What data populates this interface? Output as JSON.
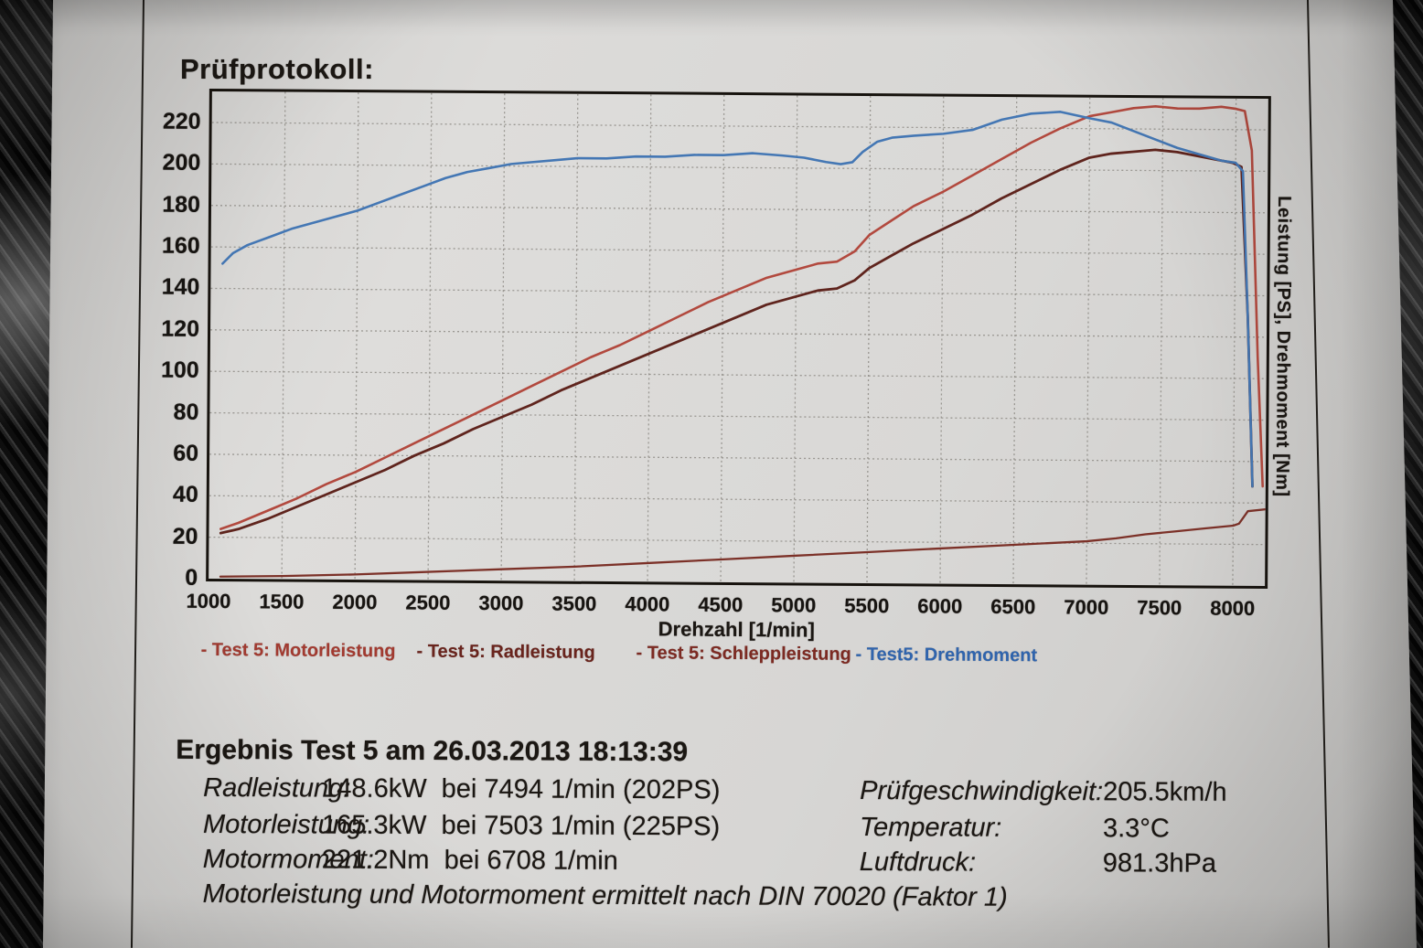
{
  "page": {
    "title": "Prüfprotokoll:"
  },
  "chart": {
    "x_axis": {
      "label": "Drehzahl [1/min]",
      "min": 1000,
      "max": 8220,
      "ticks": [
        1000,
        1500,
        2000,
        2500,
        3000,
        3500,
        4000,
        4500,
        5000,
        5500,
        6000,
        6500,
        7000,
        7500,
        8000
      ]
    },
    "y_axis": {
      "label_right": "Leistung [PS], Drehmoment [Nm]",
      "min": 0,
      "max": 235,
      "ticks": [
        0,
        20,
        40,
        60,
        80,
        100,
        120,
        140,
        160,
        180,
        200,
        220
      ]
    },
    "legend": [
      {
        "label": "- Test 5: Motorleistung",
        "color": "#a23a30"
      },
      {
        "label": "- Test 5: Radleistung",
        "color": "#69241d"
      },
      {
        "label": "- Test 5: Schleppleistung",
        "color": "#7c2a22"
      },
      {
        "label": "- Test5: Drehmoment",
        "color": "#2f64ad"
      }
    ]
  },
  "chart_data": {
    "type": "line",
    "title": "Prüfprotokoll:",
    "xlabel": "Drehzahl [1/min]",
    "ylabel": "Leistung [PS], Drehmoment [Nm]",
    "xlim": [
      1000,
      8220
    ],
    "ylim": [
      0,
      235
    ],
    "grid": true,
    "legend_position": "bottom",
    "series": [
      {
        "key": "motorleistung",
        "name": "Test 5: Motorleistung",
        "unit": "PS",
        "color": "#b2493e",
        "width": 2.6,
        "x": [
          1080,
          1200,
          1400,
          1600,
          1800,
          2000,
          2200,
          2400,
          2600,
          2800,
          3000,
          3200,
          3400,
          3600,
          3800,
          4000,
          4200,
          4400,
          4600,
          4800,
          5000,
          5150,
          5280,
          5400,
          5500,
          5650,
          5800,
          6000,
          6200,
          6400,
          6600,
          6800,
          7000,
          7150,
          7300,
          7450,
          7600,
          7750,
          7900,
          8000,
          8060,
          8110,
          8160,
          8200
        ],
        "y": [
          24,
          27,
          33,
          39,
          46,
          52,
          59,
          66,
          73,
          80,
          87,
          94,
          101,
          108,
          114,
          121,
          128,
          135,
          141,
          147,
          151,
          154,
          155,
          160,
          168,
          175,
          182,
          189,
          197,
          205,
          213,
          220,
          226,
          228,
          230,
          231,
          230,
          230,
          231,
          230,
          229,
          210,
          110,
          48
        ]
      },
      {
        "key": "radleistung",
        "name": "Test 5: Radleistung",
        "unit": "PS",
        "color": "#5f241d",
        "width": 2.8,
        "x": [
          1080,
          1200,
          1400,
          1600,
          1800,
          2000,
          2200,
          2400,
          2600,
          2800,
          3000,
          3200,
          3400,
          3600,
          3800,
          4000,
          4200,
          4400,
          4600,
          4800,
          5000,
          5150,
          5280,
          5400,
          5500,
          5650,
          5800,
          6000,
          6200,
          6400,
          6600,
          6800,
          7000,
          7150,
          7300,
          7450,
          7600,
          7750,
          7900,
          7980,
          8040,
          8090,
          8130
        ],
        "y": [
          22,
          24,
          29,
          35,
          41,
          47,
          53,
          60,
          66,
          73,
          79,
          85,
          92,
          98,
          104,
          110,
          116,
          122,
          128,
          134,
          138,
          141,
          142,
          146,
          152,
          158,
          164,
          171,
          178,
          186,
          193,
          200,
          206,
          208,
          209,
          210,
          209,
          207,
          205,
          204,
          202,
          130,
          48
        ]
      },
      {
        "key": "schleppleistung",
        "name": "Test 5: Schleppleistung",
        "unit": "PS",
        "color": "#7c3128",
        "width": 2.3,
        "x": [
          1080,
          1500,
          2000,
          2500,
          3000,
          3500,
          4000,
          4500,
          5000,
          5500,
          6000,
          6500,
          7000,
          7200,
          7400,
          7600,
          7800,
          8000,
          8040,
          8070,
          8100,
          8220
        ],
        "y": [
          1,
          1.5,
          2.5,
          4,
          5.5,
          7,
          9,
          11,
          13,
          15,
          17,
          19,
          21,
          22.5,
          24.5,
          26,
          27.5,
          29,
          30,
          33,
          36,
          37
        ]
      },
      {
        "key": "drehmoment",
        "name": "Test5: Drehmoment",
        "unit": "Nm",
        "color": "#4477b4",
        "width": 2.6,
        "x": [
          1080,
          1150,
          1250,
          1400,
          1550,
          1700,
          1850,
          2000,
          2150,
          2300,
          2450,
          2600,
          2750,
          2900,
          3050,
          3200,
          3350,
          3500,
          3700,
          3900,
          4100,
          4300,
          4500,
          4700,
          4900,
          5050,
          5200,
          5300,
          5380,
          5450,
          5550,
          5650,
          5800,
          6000,
          6200,
          6400,
          6600,
          6800,
          7000,
          7150,
          7300,
          7450,
          7600,
          7750,
          7900,
          8000,
          8050,
          8090,
          8130
        ],
        "y": [
          152,
          157,
          161,
          165,
          169,
          172,
          175,
          178,
          182,
          186,
          190,
          194,
          197,
          199,
          201,
          202,
          203,
          204,
          204,
          205,
          205,
          206,
          206,
          207,
          206,
          205,
          203,
          202,
          203,
          208,
          213,
          215,
          216,
          217,
          219,
          224,
          227,
          228,
          225,
          223,
          219,
          215,
          211,
          208,
          205,
          204,
          200,
          130,
          48
        ]
      }
    ]
  },
  "results": {
    "heading": "Ergebnis Test 5 am 26.03.2013 18:13:39",
    "left_rows": [
      {
        "label": "Radleistung:",
        "value": "148.6kW  bei 7494 1/min (202PS)"
      },
      {
        "label": "Motorleistung:",
        "value": "165.3kW  bei 7503 1/min (225PS)"
      },
      {
        "label": "Motormoment:",
        "value": "221.2Nm  bei 6708 1/min"
      }
    ],
    "right_rows": [
      {
        "label": "Prüfgeschwindigkeit:",
        "value": "205.5km/h"
      },
      {
        "label": "Temperatur:",
        "value": "3.3°C"
      },
      {
        "label": "Luftdruck:",
        "value": "981.3hPa"
      }
    ],
    "note": "Motorleistung und Motormoment ermittelt nach DIN 70020 (Faktor 1)"
  },
  "colors": {
    "paper": "#d7d6d4",
    "frame": "#17130e",
    "grid": "#8f8c86",
    "text": "#1b1713"
  }
}
